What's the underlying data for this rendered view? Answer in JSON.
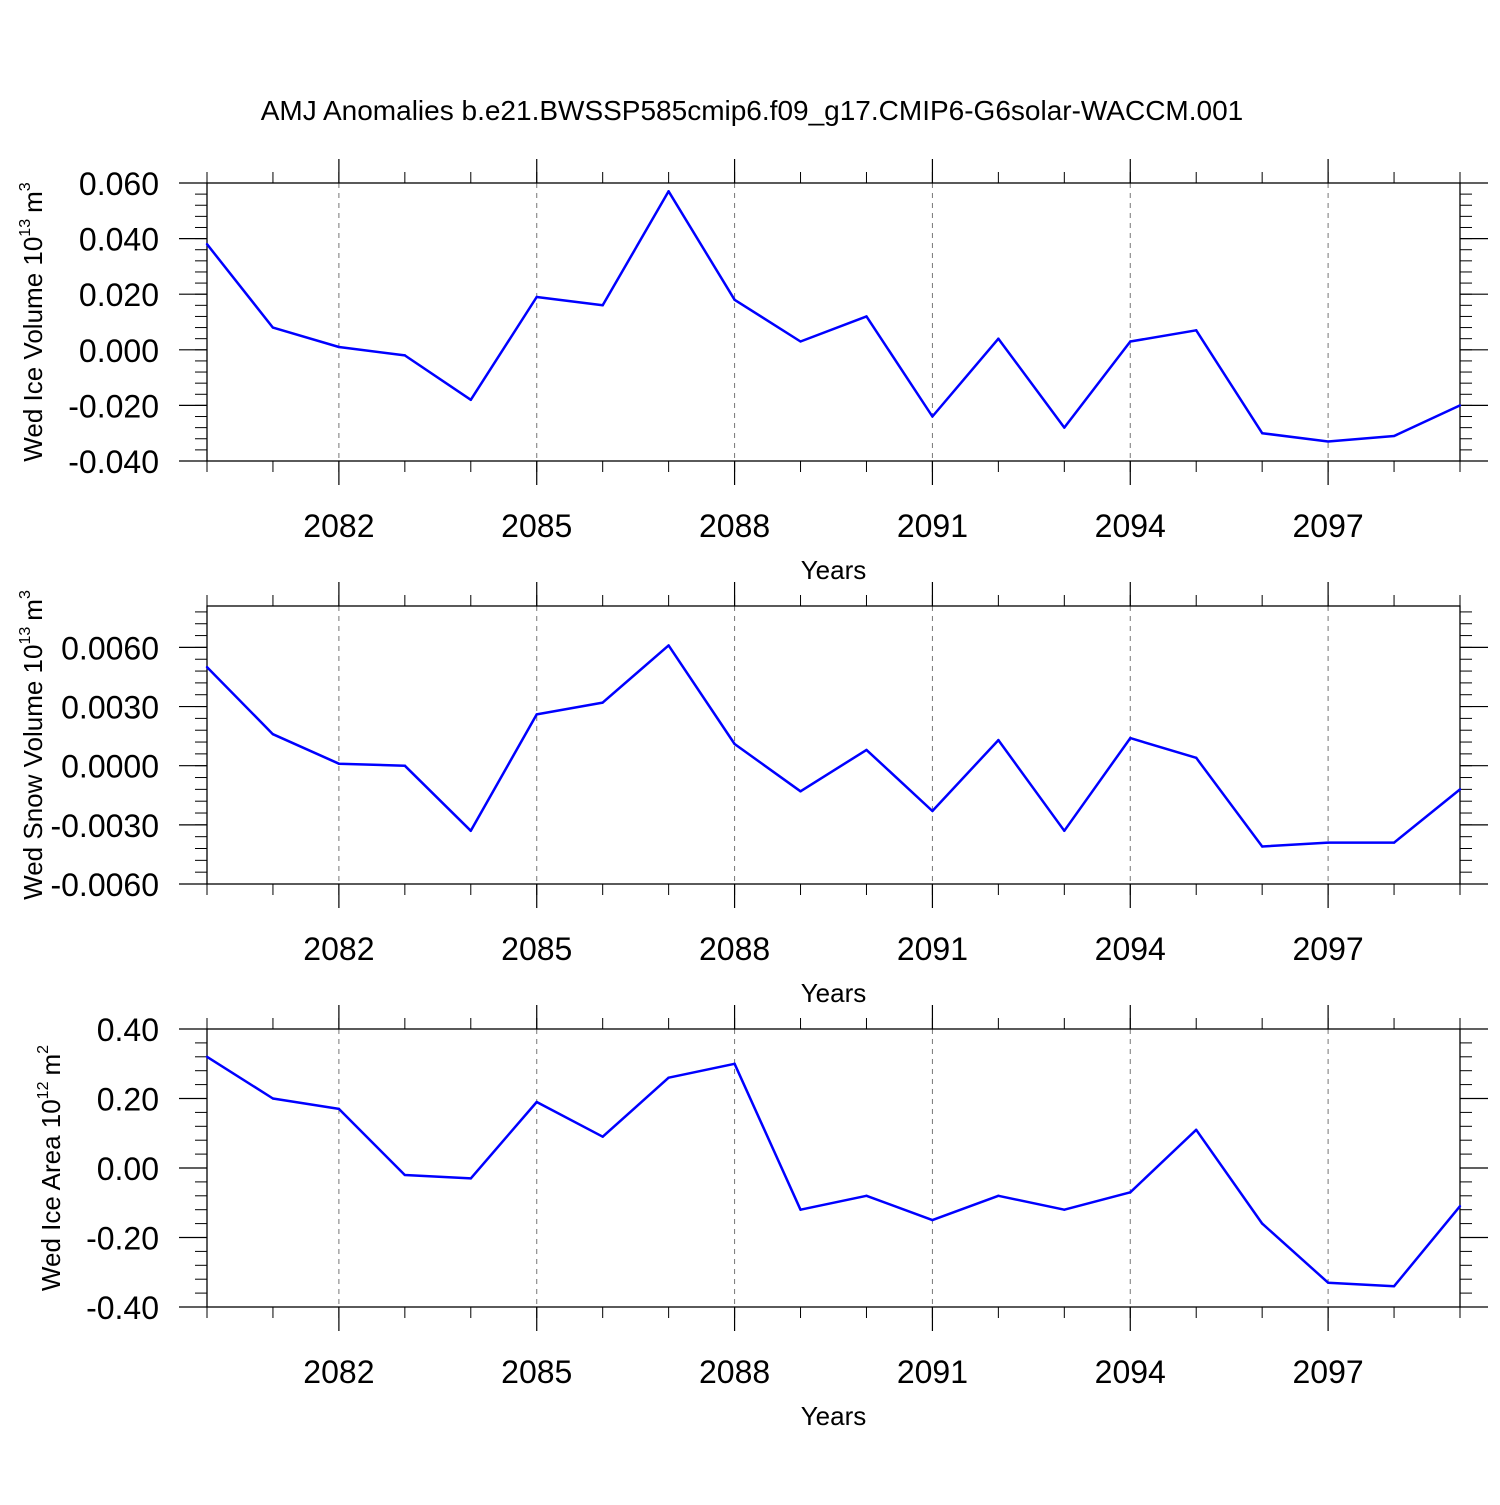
{
  "title": "AMJ Anomalies b.e21.BWSSP585cmip6.f09_g17.CMIP6-G6solar-WACCM.001",
  "colors": {
    "line": "#0000ff",
    "axis": "#000000",
    "grid": "#777777"
  },
  "chart_data": [
    {
      "type": "line",
      "ylabel": "Wed Ice Volume 10",
      "ylabel_exp": "13",
      "ylabel_unit": "m",
      "ylabel_unit_exp": "3",
      "xlabel": "Years",
      "xlim": [
        2080,
        2099
      ],
      "ylim": [
        -0.04,
        0.06
      ],
      "yticks": [
        -0.04,
        -0.02,
        0.0,
        0.02,
        0.04,
        0.06
      ],
      "ytick_labels": [
        "-0.040",
        "-0.020",
        "0.000",
        "0.020",
        "0.040",
        "0.060"
      ],
      "xticks": [
        2082,
        2085,
        2088,
        2091,
        2094,
        2097
      ],
      "xtick_labels": [
        "2082",
        "2085",
        "2088",
        "2091",
        "2094",
        "2097"
      ],
      "grid": "vertical dashed at labeled years",
      "x": [
        2080,
        2081,
        2082,
        2083,
        2084,
        2085,
        2086,
        2087,
        2088,
        2089,
        2090,
        2091,
        2092,
        2093,
        2094,
        2095,
        2096,
        2097,
        2098,
        2099
      ],
      "series": [
        {
          "values": [
            0.038,
            0.008,
            0.001,
            -0.002,
            -0.018,
            0.019,
            0.016,
            0.057,
            0.018,
            0.003,
            0.012,
            -0.024,
            0.004,
            -0.028,
            0.003,
            0.007,
            -0.03,
            -0.033,
            -0.031,
            -0.02
          ]
        }
      ]
    },
    {
      "type": "line",
      "ylabel": "Wed Snow Volume 10",
      "ylabel_exp": "13",
      "ylabel_unit": "m",
      "ylabel_unit_exp": "3",
      "xlabel": "Years",
      "xlim": [
        2080,
        2099
      ],
      "ylim": [
        -0.006,
        0.0081
      ],
      "yticks": [
        -0.006,
        -0.003,
        0.0,
        0.003,
        0.006
      ],
      "ytick_labels": [
        "-0.0060",
        "-0.0030",
        "0.0000",
        "0.0030",
        "0.0060"
      ],
      "xticks": [
        2082,
        2085,
        2088,
        2091,
        2094,
        2097
      ],
      "xtick_labels": [
        "2082",
        "2085",
        "2088",
        "2091",
        "2094",
        "2097"
      ],
      "grid": "vertical dashed at labeled years",
      "x": [
        2080,
        2081,
        2082,
        2083,
        2084,
        2085,
        2086,
        2087,
        2088,
        2089,
        2090,
        2091,
        2092,
        2093,
        2094,
        2095,
        2096,
        2097,
        2098,
        2099
      ],
      "series": [
        {
          "values": [
            0.005,
            0.0016,
            0.0001,
            0.0,
            -0.0033,
            0.0026,
            0.0032,
            0.0061,
            0.0011,
            -0.0013,
            0.0008,
            -0.0023,
            0.0013,
            -0.0033,
            0.0014,
            0.0004,
            -0.0041,
            -0.0039,
            -0.0039,
            -0.0012
          ]
        }
      ]
    },
    {
      "type": "line",
      "ylabel": "Wed Ice Area 10",
      "ylabel_exp": "12",
      "ylabel_unit": "m",
      "ylabel_unit_exp": "2",
      "xlabel": "Years",
      "xlim": [
        2080,
        2099
      ],
      "ylim": [
        -0.4,
        0.4
      ],
      "yticks": [
        -0.4,
        -0.2,
        0.0,
        0.2,
        0.4
      ],
      "ytick_labels": [
        "-0.40",
        "-0.20",
        "0.00",
        "0.20",
        "0.40"
      ],
      "xticks": [
        2082,
        2085,
        2088,
        2091,
        2094,
        2097
      ],
      "xtick_labels": [
        "2082",
        "2085",
        "2088",
        "2091",
        "2094",
        "2097"
      ],
      "grid": "vertical dashed at labeled years",
      "x": [
        2080,
        2081,
        2082,
        2083,
        2084,
        2085,
        2086,
        2087,
        2088,
        2089,
        2090,
        2091,
        2092,
        2093,
        2094,
        2095,
        2096,
        2097,
        2098,
        2099
      ],
      "series": [
        {
          "values": [
            0.32,
            0.2,
            0.17,
            -0.02,
            -0.03,
            0.19,
            0.09,
            0.26,
            0.3,
            -0.12,
            -0.08,
            -0.15,
            -0.08,
            -0.12,
            -0.07,
            0.11,
            -0.16,
            -0.33,
            -0.34,
            -0.11
          ]
        }
      ]
    }
  ]
}
